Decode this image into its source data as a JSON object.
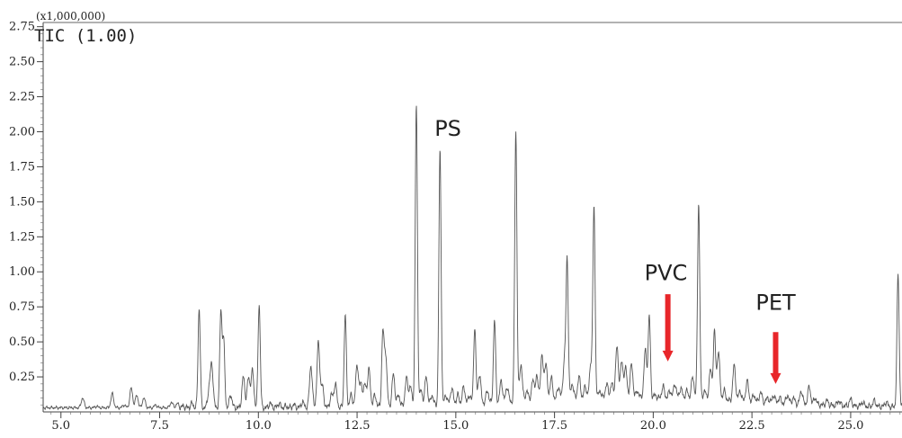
{
  "chart_data": {
    "type": "line",
    "title": "TIC (1.00)",
    "y_multiplier": "(x1,000,000)",
    "xlabel": "",
    "ylabel": "",
    "xlim": [
      4.55,
      26.3
    ],
    "ylim": [
      0.0,
      2.78
    ],
    "x_ticks": [
      5.0,
      7.5,
      10.0,
      12.5,
      15.0,
      17.5,
      20.0,
      22.5,
      25.0
    ],
    "x_tick_labels": [
      "5.0",
      "7.5",
      "10.0",
      "12.5",
      "15.0",
      "17.5",
      "20.0",
      "22.5",
      "25.0"
    ],
    "y_ticks": [
      0.25,
      0.5,
      0.75,
      1.0,
      1.25,
      1.5,
      1.75,
      2.0,
      2.25,
      2.5,
      2.75
    ],
    "y_tick_labels": [
      "0.25",
      "0.50",
      "0.75",
      "1.00",
      "1.25",
      "1.50",
      "1.75",
      "2.00",
      "2.25",
      "2.50",
      "2.75"
    ],
    "baseline": 0.03,
    "line_color": "#555555",
    "peaks": [
      {
        "x": 5.55,
        "y": 0.1
      },
      {
        "x": 5.9,
        "y": 0.04
      },
      {
        "x": 6.3,
        "y": 0.13
      },
      {
        "x": 6.6,
        "y": 0.05
      },
      {
        "x": 6.78,
        "y": 0.17
      },
      {
        "x": 6.92,
        "y": 0.12
      },
      {
        "x": 7.1,
        "y": 0.1
      },
      {
        "x": 7.4,
        "y": 0.05
      },
      {
        "x": 7.8,
        "y": 0.07
      },
      {
        "x": 7.95,
        "y": 0.06
      },
      {
        "x": 8.1,
        "y": 0.04
      },
      {
        "x": 8.32,
        "y": 0.06
      },
      {
        "x": 8.5,
        "y": 0.74
      },
      {
        "x": 8.75,
        "y": 0.15
      },
      {
        "x": 8.82,
        "y": 0.33
      },
      {
        "x": 9.05,
        "y": 0.71
      },
      {
        "x": 9.12,
        "y": 0.51
      },
      {
        "x": 9.3,
        "y": 0.12
      },
      {
        "x": 9.62,
        "y": 0.25
      },
      {
        "x": 9.75,
        "y": 0.24
      },
      {
        "x": 9.85,
        "y": 0.29
      },
      {
        "x": 10.02,
        "y": 0.77
      },
      {
        "x": 10.3,
        "y": 0.06
      },
      {
        "x": 10.52,
        "y": 0.06
      },
      {
        "x": 10.7,
        "y": 0.04
      },
      {
        "x": 10.9,
        "y": 0.05
      },
      {
        "x": 11.12,
        "y": 0.07
      },
      {
        "x": 11.33,
        "y": 0.33
      },
      {
        "x": 11.52,
        "y": 0.49
      },
      {
        "x": 11.62,
        "y": 0.18
      },
      {
        "x": 11.85,
        "y": 0.12
      },
      {
        "x": 11.95,
        "y": 0.2
      },
      {
        "x": 12.2,
        "y": 0.69
      },
      {
        "x": 12.35,
        "y": 0.12
      },
      {
        "x": 12.5,
        "y": 0.34
      },
      {
        "x": 12.6,
        "y": 0.2
      },
      {
        "x": 12.7,
        "y": 0.19
      },
      {
        "x": 12.8,
        "y": 0.3
      },
      {
        "x": 12.95,
        "y": 0.12
      },
      {
        "x": 13.15,
        "y": 0.53
      },
      {
        "x": 13.22,
        "y": 0.42
      },
      {
        "x": 13.42,
        "y": 0.27
      },
      {
        "x": 13.55,
        "y": 0.12
      },
      {
        "x": 13.75,
        "y": 0.24
      },
      {
        "x": 13.85,
        "y": 0.18
      },
      {
        "x": 14.0,
        "y": 2.19
      },
      {
        "x": 14.12,
        "y": 0.15
      },
      {
        "x": 14.25,
        "y": 0.25
      },
      {
        "x": 14.4,
        "y": 0.12
      },
      {
        "x": 14.6,
        "y": 1.86
      },
      {
        "x": 14.75,
        "y": 0.12
      },
      {
        "x": 14.9,
        "y": 0.17
      },
      {
        "x": 15.05,
        "y": 0.12
      },
      {
        "x": 15.2,
        "y": 0.18
      },
      {
        "x": 15.35,
        "y": 0.12
      },
      {
        "x": 15.48,
        "y": 0.61
      },
      {
        "x": 15.6,
        "y": 0.27
      },
      {
        "x": 15.8,
        "y": 0.15
      },
      {
        "x": 15.98,
        "y": 0.66
      },
      {
        "x": 16.15,
        "y": 0.22
      },
      {
        "x": 16.3,
        "y": 0.18
      },
      {
        "x": 16.52,
        "y": 2.01
      },
      {
        "x": 16.65,
        "y": 0.34
      },
      {
        "x": 16.8,
        "y": 0.15
      },
      {
        "x": 16.95,
        "y": 0.22
      },
      {
        "x": 17.05,
        "y": 0.25
      },
      {
        "x": 17.18,
        "y": 0.39
      },
      {
        "x": 17.28,
        "y": 0.34
      },
      {
        "x": 17.42,
        "y": 0.24
      },
      {
        "x": 17.6,
        "y": 0.18
      },
      {
        "x": 17.75,
        "y": 0.36
      },
      {
        "x": 17.82,
        "y": 1.07
      },
      {
        "x": 17.95,
        "y": 0.2
      },
      {
        "x": 18.12,
        "y": 0.25
      },
      {
        "x": 18.28,
        "y": 0.18
      },
      {
        "x": 18.42,
        "y": 0.34
      },
      {
        "x": 18.5,
        "y": 1.45
      },
      {
        "x": 18.65,
        "y": 0.15
      },
      {
        "x": 18.82,
        "y": 0.2
      },
      {
        "x": 18.95,
        "y": 0.2
      },
      {
        "x": 19.08,
        "y": 0.46
      },
      {
        "x": 19.2,
        "y": 0.35
      },
      {
        "x": 19.3,
        "y": 0.31
      },
      {
        "x": 19.45,
        "y": 0.34
      },
      {
        "x": 19.6,
        "y": 0.15
      },
      {
        "x": 19.8,
        "y": 0.44
      },
      {
        "x": 19.9,
        "y": 0.68
      },
      {
        "x": 20.05,
        "y": 0.12
      },
      {
        "x": 20.25,
        "y": 0.18
      },
      {
        "x": 20.42,
        "y": 0.15
      },
      {
        "x": 20.55,
        "y": 0.2
      },
      {
        "x": 20.7,
        "y": 0.17
      },
      {
        "x": 20.85,
        "y": 0.15
      },
      {
        "x": 21.0,
        "y": 0.25
      },
      {
        "x": 21.15,
        "y": 1.49
      },
      {
        "x": 21.3,
        "y": 0.15
      },
      {
        "x": 21.45,
        "y": 0.3
      },
      {
        "x": 21.55,
        "y": 0.57
      },
      {
        "x": 21.65,
        "y": 0.43
      },
      {
        "x": 21.8,
        "y": 0.15
      },
      {
        "x": 22.05,
        "y": 0.33
      },
      {
        "x": 22.2,
        "y": 0.15
      },
      {
        "x": 22.38,
        "y": 0.22
      },
      {
        "x": 22.55,
        "y": 0.12
      },
      {
        "x": 22.72,
        "y": 0.14
      },
      {
        "x": 22.9,
        "y": 0.1
      },
      {
        "x": 23.05,
        "y": 0.12
      },
      {
        "x": 23.2,
        "y": 0.1
      },
      {
        "x": 23.4,
        "y": 0.12
      },
      {
        "x": 23.55,
        "y": 0.1
      },
      {
        "x": 23.75,
        "y": 0.15
      },
      {
        "x": 23.95,
        "y": 0.18
      },
      {
        "x": 24.1,
        "y": 0.1
      },
      {
        "x": 24.4,
        "y": 0.08
      },
      {
        "x": 24.7,
        "y": 0.08
      },
      {
        "x": 25.0,
        "y": 0.09
      },
      {
        "x": 25.3,
        "y": 0.07
      },
      {
        "x": 25.6,
        "y": 0.08
      },
      {
        "x": 25.9,
        "y": 0.07
      },
      {
        "x": 26.2,
        "y": 0.98
      }
    ],
    "annotations": [
      {
        "text": "PS",
        "x": 14.8,
        "y": 1.97
      },
      {
        "text": "PVC",
        "x": 20.32,
        "y": 0.94,
        "arrow_from": 0.84,
        "arrow_to": 0.36,
        "arrow_color": "#e8262a"
      },
      {
        "text": "PET",
        "x": 23.1,
        "y": 0.73,
        "arrow_from": 0.57,
        "arrow_to": 0.2,
        "arrow_color": "#e8262a"
      }
    ]
  }
}
